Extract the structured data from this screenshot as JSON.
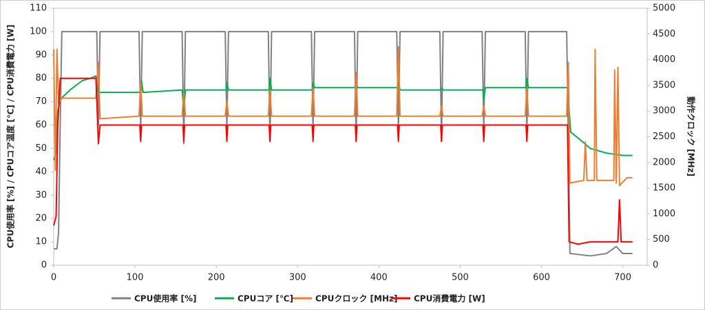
{
  "chart_data": {
    "type": "line",
    "y_label": "CPU使用率 [%] / CPUコア温度 [℃] / CPU消費電力 [W]",
    "y2_label": "動作クロック [MHz]",
    "xlim": [
      0,
      730
    ],
    "xticks": [
      0,
      100,
      200,
      300,
      400,
      500,
      600,
      700
    ],
    "ylim": [
      0,
      110
    ],
    "yticks": [
      0,
      10,
      20,
      30,
      40,
      50,
      60,
      70,
      80,
      90,
      100,
      110
    ],
    "y2lim": [
      0,
      5000
    ],
    "y2ticks": [
      0,
      500,
      1000,
      1500,
      2000,
      2500,
      3000,
      3500,
      4000,
      4500,
      5000
    ],
    "series": [
      {
        "name": "CPU使用率 [%]",
        "color": "#808080",
        "x": [
          0,
          4,
          6,
          8,
          10,
          53,
          55,
          57,
          105,
          107,
          109,
          158,
          160,
          162,
          211,
          213,
          215,
          264,
          266,
          268,
          317,
          319,
          321,
          370,
          372,
          374,
          422,
          424,
          426,
          475,
          477,
          479,
          527,
          529,
          531,
          580,
          582,
          584,
          631,
          633,
          635,
          660,
          680,
          692,
          700,
          712
        ],
        "values": [
          7,
          7,
          14,
          60,
          100,
          100,
          60,
          100,
          100,
          58,
          100,
          100,
          52,
          100,
          100,
          58,
          100,
          100,
          53,
          100,
          100,
          58,
          100,
          100,
          53,
          100,
          100,
          58,
          100,
          100,
          53,
          100,
          100,
          58,
          100,
          100,
          56,
          100,
          100,
          55,
          5,
          4,
          5,
          8,
          5,
          5
        ]
      },
      {
        "name": "CPUコア [℃]",
        "color": "#00b050",
        "x": [
          0,
          3,
          5,
          8,
          20,
          35,
          45,
          52,
          55,
          107,
          108,
          110,
          158,
          160,
          162,
          212,
          213,
          215,
          265,
          266,
          268,
          318,
          319,
          321,
          371,
          372,
          374,
          423,
          424,
          426,
          476,
          477,
          479,
          528,
          529,
          531,
          581,
          582,
          584,
          632,
          636,
          650,
          660,
          680,
          700,
          712
        ],
        "values": [
          45,
          48,
          66,
          71,
          75,
          79,
          80,
          81,
          74,
          74,
          79,
          74,
          75,
          66,
          75,
          75,
          78,
          75,
          75,
          80,
          75,
          75,
          78,
          76,
          76,
          78,
          76,
          76,
          79,
          75,
          75,
          76,
          75,
          75,
          71,
          76,
          76,
          80,
          76,
          76,
          57,
          53,
          50,
          48,
          47,
          47
        ]
      },
      {
        "name": "CPUクロック [MHz]",
        "color": "#ed7d31",
        "axis": "y2",
        "x": [
          0,
          2,
          4,
          6,
          10,
          52,
          55,
          57,
          105,
          107,
          109,
          158,
          160,
          162,
          211,
          213,
          215,
          264,
          266,
          268,
          317,
          319,
          321,
          370,
          372,
          374,
          422,
          424,
          426,
          475,
          477,
          479,
          527,
          529,
          531,
          580,
          582,
          584,
          631,
          633,
          635,
          652,
          654,
          656,
          665,
          666,
          668,
          689,
          690,
          692,
          694,
          696,
          705,
          712
        ],
        "values": [
          4200,
          1850,
          4200,
          3150,
          3250,
          3250,
          3950,
          2850,
          2900,
          3550,
          2900,
          2900,
          3350,
          2900,
          2900,
          3200,
          2900,
          2900,
          3400,
          2900,
          2900,
          3450,
          2900,
          2900,
          3750,
          2900,
          2900,
          4250,
          2900,
          2900,
          3100,
          2900,
          2900,
          3100,
          2900,
          2900,
          3450,
          2900,
          2900,
          3950,
          1600,
          1650,
          2400,
          1650,
          1650,
          4200,
          1650,
          1650,
          3800,
          1600,
          3850,
          1550,
          1700,
          1700
        ]
      },
      {
        "name": "CPU消費電力 [W]",
        "color": "#ff0000",
        "x": [
          0,
          3,
          5,
          8,
          52,
          55,
          57,
          106,
          107,
          108,
          159,
          160,
          161,
          212,
          213,
          214,
          265,
          266,
          267,
          318,
          319,
          320,
          371,
          372,
          373,
          423,
          424,
          425,
          476,
          477,
          478,
          528,
          529,
          530,
          581,
          582,
          583,
          632,
          634,
          645,
          660,
          694,
          696,
          698,
          712
        ],
        "values": [
          17,
          21,
          60,
          80,
          80,
          52,
          60,
          60,
          53,
          60,
          60,
          53,
          60,
          60,
          53,
          60,
          60,
          53,
          60,
          60,
          53,
          60,
          60,
          53,
          60,
          60,
          53,
          60,
          60,
          53,
          60,
          60,
          53,
          60,
          60,
          53,
          60,
          60,
          10,
          9,
          10,
          10,
          28,
          10,
          10
        ]
      }
    ]
  }
}
